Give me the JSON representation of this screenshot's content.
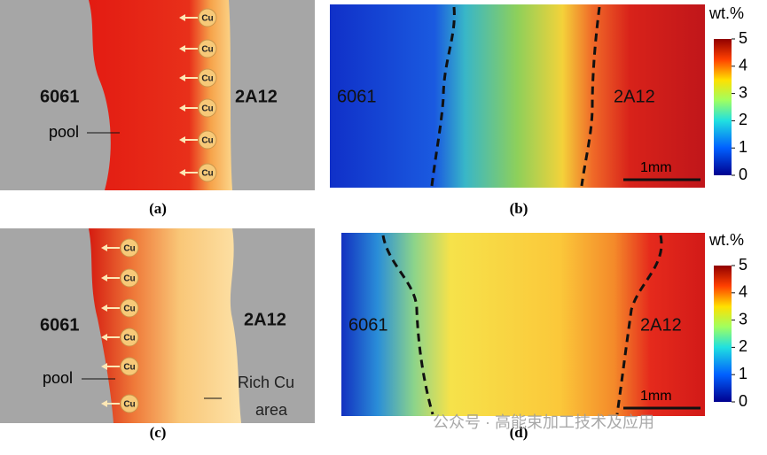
{
  "panels": [
    {
      "label": "(a)",
      "left_alloy": "6061",
      "right_alloy": "2A12",
      "pool": "pool",
      "cu": "Cu"
    },
    {
      "label": "(b)",
      "left_alloy": "6061",
      "right_alloy": "2A12",
      "scale": "1mm",
      "colorbar_title": "wt.%",
      "colorbar_ticks": [
        5,
        4,
        3,
        2,
        1,
        0
      ]
    },
    {
      "label": "(c)",
      "left_alloy": "6061",
      "right_alloy": "2A12",
      "pool": "pool",
      "cu": "Cu",
      "rich_area": [
        "Rich Cu",
        "area"
      ]
    },
    {
      "label": "(d)",
      "left_alloy": "6061",
      "right_alloy": "2A12",
      "scale": "1mm",
      "colorbar_title": "wt.%",
      "colorbar_ticks": [
        5,
        4,
        3,
        2,
        1,
        0
      ]
    }
  ],
  "watermark": "公众号 · 高能束加工技术及应用"
}
